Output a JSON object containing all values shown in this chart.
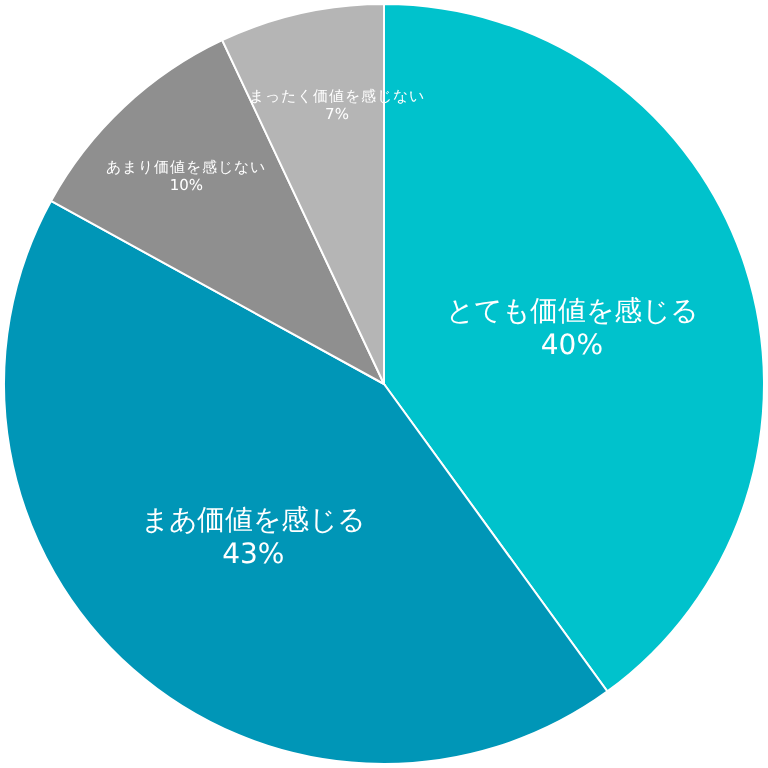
{
  "chart_data": {
    "type": "pie",
    "categories": [
      "とても価値を感じる",
      "まあ価値を感じる",
      "あまり価値を感じない",
      "まったく価値を感じない"
    ],
    "values": [
      40,
      43,
      10,
      7
    ],
    "value_labels": [
      "40%",
      "43%",
      "10%",
      "7%"
    ],
    "colors": [
      "#00c2cc",
      "#0096b7",
      "#8f8f8f",
      "#b5b5b5"
    ]
  }
}
